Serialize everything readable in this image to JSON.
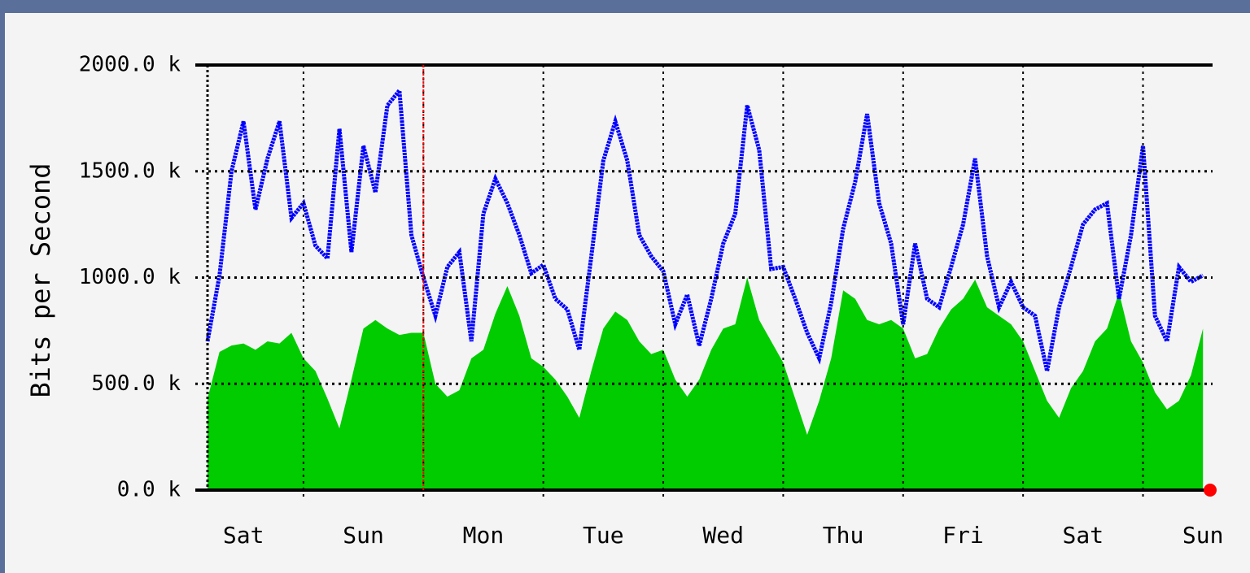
{
  "chart_data": {
    "type": "area-line",
    "ylabel": "Bits per Second",
    "x": [
      0.2,
      0.3,
      0.4,
      0.5,
      0.6,
      0.7,
      0.8,
      0.9,
      1.0,
      1.1,
      1.2,
      1.3,
      1.4,
      1.5,
      1.6,
      1.7,
      1.8,
      1.9,
      2.0,
      2.1,
      2.2,
      2.3,
      2.4,
      2.5,
      2.6,
      2.7,
      2.8,
      2.9,
      3.0,
      3.1,
      3.2,
      3.3,
      3.4,
      3.5,
      3.6,
      3.7,
      3.8,
      3.9,
      4.0,
      4.1,
      4.2,
      4.3,
      4.4,
      4.5,
      4.6,
      4.7,
      4.8,
      4.9,
      5.0,
      5.1,
      5.2,
      5.3,
      5.4,
      5.5,
      5.6,
      5.7,
      5.8,
      5.9,
      6.0,
      6.1,
      6.2,
      6.3,
      6.4,
      6.5,
      6.6,
      6.7,
      6.8,
      6.9,
      7.0,
      7.1,
      7.2,
      7.3,
      7.4,
      7.5,
      7.6,
      7.7,
      7.8,
      7.9,
      8.0,
      8.1,
      8.2,
      8.3,
      8.4,
      8.5
    ],
    "series": [
      {
        "color": "#00cc00",
        "fill": true,
        "values": [
          430,
          650,
          680,
          690,
          660,
          700,
          690,
          740,
          620,
          560,
          430,
          290,
          520,
          760,
          800,
          760,
          730,
          740,
          740,
          500,
          440,
          470,
          620,
          660,
          830,
          960,
          820,
          620,
          580,
          520,
          440,
          340,
          560,
          760,
          840,
          800,
          700,
          640,
          660,
          520,
          440,
          520,
          660,
          760,
          780,
          1000,
          800,
          700,
          600,
          430,
          260,
          420,
          620,
          940,
          900,
          800,
          780,
          800,
          760,
          620,
          640,
          760,
          850,
          900,
          990,
          860,
          820,
          780,
          700,
          560,
          420,
          340,
          480,
          560,
          700,
          760,
          930,
          700,
          600,
          460,
          380,
          420,
          540,
          760
        ]
      },
      {
        "color": "#0000ff",
        "fill": false,
        "values": [
          700,
          1010,
          1500,
          1735,
          1320,
          1560,
          1735,
          1280,
          1350,
          1150,
          1090,
          1700,
          1120,
          1620,
          1400,
          1810,
          1880,
          1200,
          1000,
          820,
          1050,
          1120,
          700,
          1300,
          1465,
          1350,
          1200,
          1020,
          1060,
          900,
          850,
          660,
          1100,
          1550,
          1735,
          1550,
          1200,
          1100,
          1030,
          780,
          920,
          680,
          900,
          1160,
          1300,
          1810,
          1600,
          1040,
          1050,
          900,
          740,
          620,
          880,
          1230,
          1450,
          1770,
          1350,
          1160,
          780,
          1160,
          900,
          860,
          1050,
          1250,
          1560,
          1100,
          860,
          980,
          860,
          820,
          560,
          860,
          1050,
          1250,
          1320,
          1350,
          900,
          1200,
          1620,
          820,
          700,
          1050,
          980,
          1010
        ]
      }
    ],
    "xlim": [
      0.2,
      8.58
    ],
    "xticks": [
      {
        "value": 0,
        "label": "Sat"
      },
      {
        "value": 1,
        "label": "Sun"
      },
      {
        "value": 2,
        "label": "Mon"
      },
      {
        "value": 3,
        "label": "Tue"
      },
      {
        "value": 4,
        "label": "Wed"
      },
      {
        "value": 5,
        "label": "Thu"
      },
      {
        "value": 6,
        "label": "Fri"
      },
      {
        "value": 7,
        "label": "Sat"
      },
      {
        "value": 8,
        "label": "Sun"
      }
    ],
    "ylim": [
      0,
      2000
    ],
    "yticks": [
      {
        "value": 0,
        "label": "0.0 k"
      },
      {
        "value": 500,
        "label": "500.0 k"
      },
      {
        "value": 1000,
        "label": "1000.0 k"
      },
      {
        "value": 1500,
        "label": "1500.0 k"
      },
      {
        "value": 2000,
        "label": "2000.0 k"
      }
    ],
    "grid": true,
    "highlight_x": 2,
    "highlight_color": "#ff0000"
  }
}
